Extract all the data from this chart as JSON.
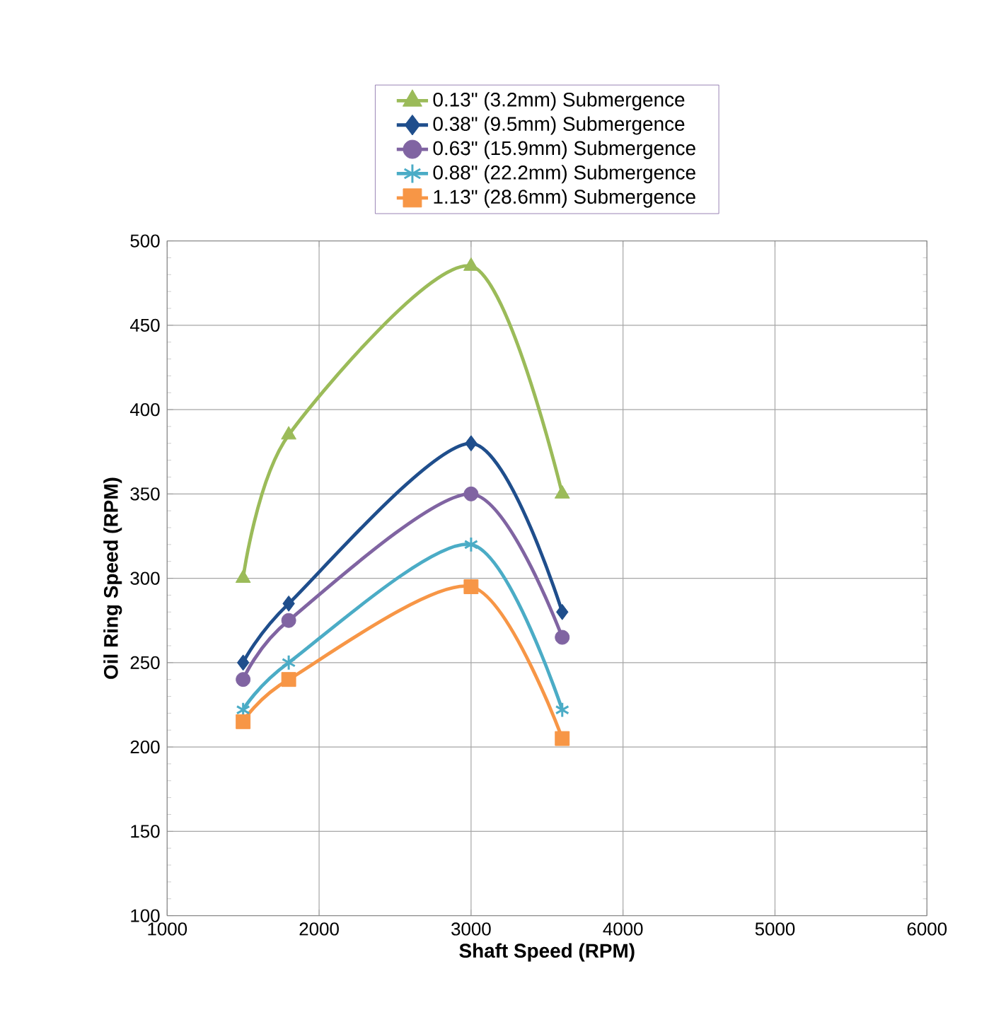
{
  "chart_data": {
    "type": "line",
    "xlabel": "Shaft Speed (RPM)",
    "ylabel": "Oil Ring Speed (RPM)",
    "x": [
      1500,
      1800,
      3000,
      3600
    ],
    "series": [
      {
        "name": "0.13\" (3.2mm) Submergence",
        "color": "#9bbb59",
        "marker": "triangle",
        "values": [
          300,
          385,
          485,
          350
        ]
      },
      {
        "name": "0.38\" (9.5mm) Submergence",
        "color": "#1f4e8c",
        "marker": "diamond",
        "values": [
          250,
          285,
          380,
          280
        ]
      },
      {
        "name": "0.63\" (15.9mm) Submergence",
        "color": "#8064a2",
        "marker": "circle",
        "values": [
          240,
          275,
          350,
          265
        ]
      },
      {
        "name": "0.88\" (22.2mm) Submergence",
        "color": "#4bacc6",
        "marker": "cross",
        "values": [
          222,
          250,
          320,
          222
        ]
      },
      {
        "name": "1.13\" (28.6mm) Submergence",
        "color": "#f79646",
        "marker": "square",
        "values": [
          215,
          240,
          295,
          205
        ]
      }
    ],
    "xlim": [
      1000,
      6000
    ],
    "xticks": [
      1000,
      2000,
      3000,
      4000,
      5000,
      6000
    ],
    "ylim": [
      100,
      500
    ],
    "yticks": [
      100,
      150,
      200,
      250,
      300,
      350,
      400,
      450,
      500
    ],
    "grid": true,
    "legend": "top",
    "line_style": "solid"
  }
}
